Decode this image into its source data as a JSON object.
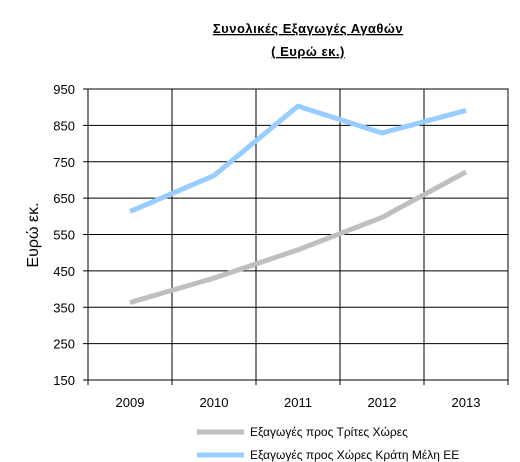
{
  "chart_data": {
    "type": "line",
    "title": "Συνολικές Εξαγωγές Αγαθών",
    "subtitle": "( Ευρώ εκ.)",
    "ylabel": "Ευρώ εκ.",
    "xlabel": "",
    "categories": [
      "2009",
      "2010",
      "2011",
      "2012",
      "2013"
    ],
    "ylim": [
      150,
      950
    ],
    "yticks": [
      150,
      250,
      350,
      450,
      550,
      650,
      750,
      850,
      950
    ],
    "grid": true,
    "legend_position": "bottom-right",
    "series": [
      {
        "name": "Εξαγωγές προς Τρίτες Χώρες",
        "values": [
          363,
          430,
          508,
          597,
          722
        ],
        "color": "#bfbfbf"
      },
      {
        "name": "Εξαγωγές προς Χώρες Κράτη Μέλη ΕΕ",
        "values": [
          613,
          712,
          903,
          829,
          891
        ],
        "color": "#99ccff"
      }
    ]
  }
}
